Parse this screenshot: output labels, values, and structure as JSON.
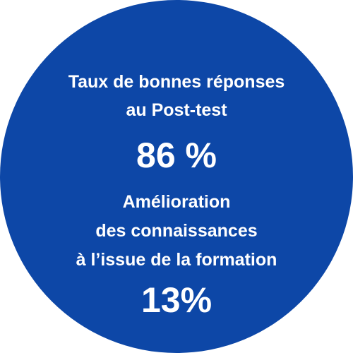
{
  "colors": {
    "circle": "#0d47a7",
    "text": "#ffffff",
    "background": "#ffffff"
  },
  "stat_1": {
    "label_lines": [
      "Taux de bonnes réponses",
      "au Post-test"
    ],
    "value": "86 %"
  },
  "stat_2": {
    "label_lines": [
      "Amélioration",
      "des connaissances",
      "à l’issue de la formation"
    ],
    "value": "13%"
  }
}
